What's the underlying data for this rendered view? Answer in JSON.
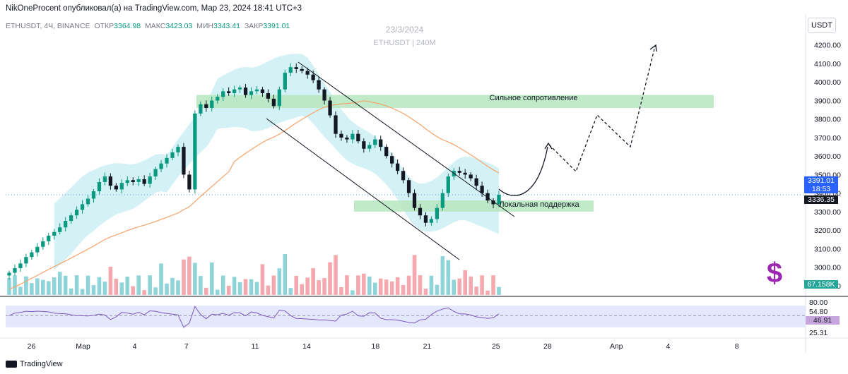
{
  "header": {
    "text": "NikOneProcent опубликовал(а) на TradingView.com, Мар 23, 2024 18:41 UTC+3"
  },
  "symbol_line": {
    "symbol": "ETHUSDT, 4Ч, BINANCE",
    "open_label": "ОТКР",
    "open": "3364.98",
    "high_label": "МАКС",
    "high": "3423.03",
    "low_label": "МИН",
    "low": "3343.41",
    "close_label": "ЗАКР",
    "close": "3391.01"
  },
  "watermark": {
    "date": "23/3/2024",
    "symbol": "ETHUSDT | 240M"
  },
  "currency": "USDT",
  "price_badges": {
    "last": "3391.01",
    "countdown": "18:53",
    "support": "3336.35",
    "volume": "67.158K"
  },
  "rsi_badges": {
    "upper": "80.00",
    "middle": "54.80",
    "value": "46.91",
    "lower": "25.31"
  },
  "annotations": {
    "resistance": "Сильное сопротивление",
    "support": "Локальная поддержка",
    "dollar": "$"
  },
  "footer": {
    "brand": "TradingView"
  },
  "colors": {
    "up": "#089981",
    "down": "#131722",
    "band": "#c6eef3",
    "zone": "#b6e6be",
    "ma": "#f5a36a",
    "vol_up": "#8fd4d8",
    "vol_down": "#f5a9ae",
    "rsi_band": "#e3e8fd",
    "dollar": "#9c27b0"
  },
  "chart_data": {
    "type": "candlestick",
    "symbol": "ETHUSDT",
    "timeframe": "4Ч",
    "y_ticks": [
      2900,
      3000,
      3100,
      3200,
      3300,
      3400,
      3500,
      3600,
      3700,
      3800,
      3900,
      4000,
      4100,
      4200
    ],
    "ylim": [
      2850,
      4260
    ],
    "x_ticks": [
      {
        "label": "26",
        "day": -3
      },
      {
        "label": "Мар",
        "day": 0
      },
      {
        "label": "4",
        "day": 3
      },
      {
        "label": "7",
        "day": 6
      },
      {
        "label": "11",
        "day": 10
      },
      {
        "label": "14",
        "day": 13
      },
      {
        "label": "18",
        "day": 17
      },
      {
        "label": "21",
        "day": 20
      },
      {
        "label": "25",
        "day": 24
      },
      {
        "label": "28",
        "day": 27
      },
      {
        "label": "Апр",
        "day": 31
      },
      {
        "label": "4",
        "day": 34
      },
      {
        "label": "8",
        "day": 38
      }
    ],
    "xlim_days": [
      -4.5,
      42
    ],
    "close_series": [
      2970,
      2995,
      3020,
      3055,
      3080,
      3110,
      3140,
      3170,
      3190,
      3215,
      3250,
      3280,
      3310,
      3340,
      3370,
      3410,
      3460,
      3490,
      3440,
      3420,
      3455,
      3470,
      3460,
      3475,
      3450,
      3490,
      3530,
      3560,
      3590,
      3620,
      3650,
      3500,
      3420,
      3830,
      3880,
      3860,
      3900,
      3920,
      3950,
      3940,
      3960,
      3970,
      3930,
      3950,
      3960,
      3940,
      3910,
      3870,
      3960,
      4050,
      4080,
      4070,
      4060,
      4040,
      4010,
      3960,
      3900,
      3820,
      3720,
      3700,
      3690,
      3720,
      3680,
      3640,
      3660,
      3690,
      3650,
      3600,
      3560,
      3520,
      3470,
      3400,
      3320,
      3280,
      3240,
      3260,
      3320,
      3400,
      3490,
      3520,
      3510,
      3500,
      3480,
      3440,
      3400,
      3360,
      3340,
      3391
    ],
    "wave_projection_levels": [
      3336,
      3400,
      3640,
      3500,
      3790,
      3620,
      4200
    ],
    "resistance_zone": [
      3860,
      3930
    ],
    "support_zone": [
      3300,
      3360
    ],
    "rsi": {
      "upper": 80,
      "middle": 54.8,
      "lower": 25.31,
      "value": 46.91
    }
  }
}
